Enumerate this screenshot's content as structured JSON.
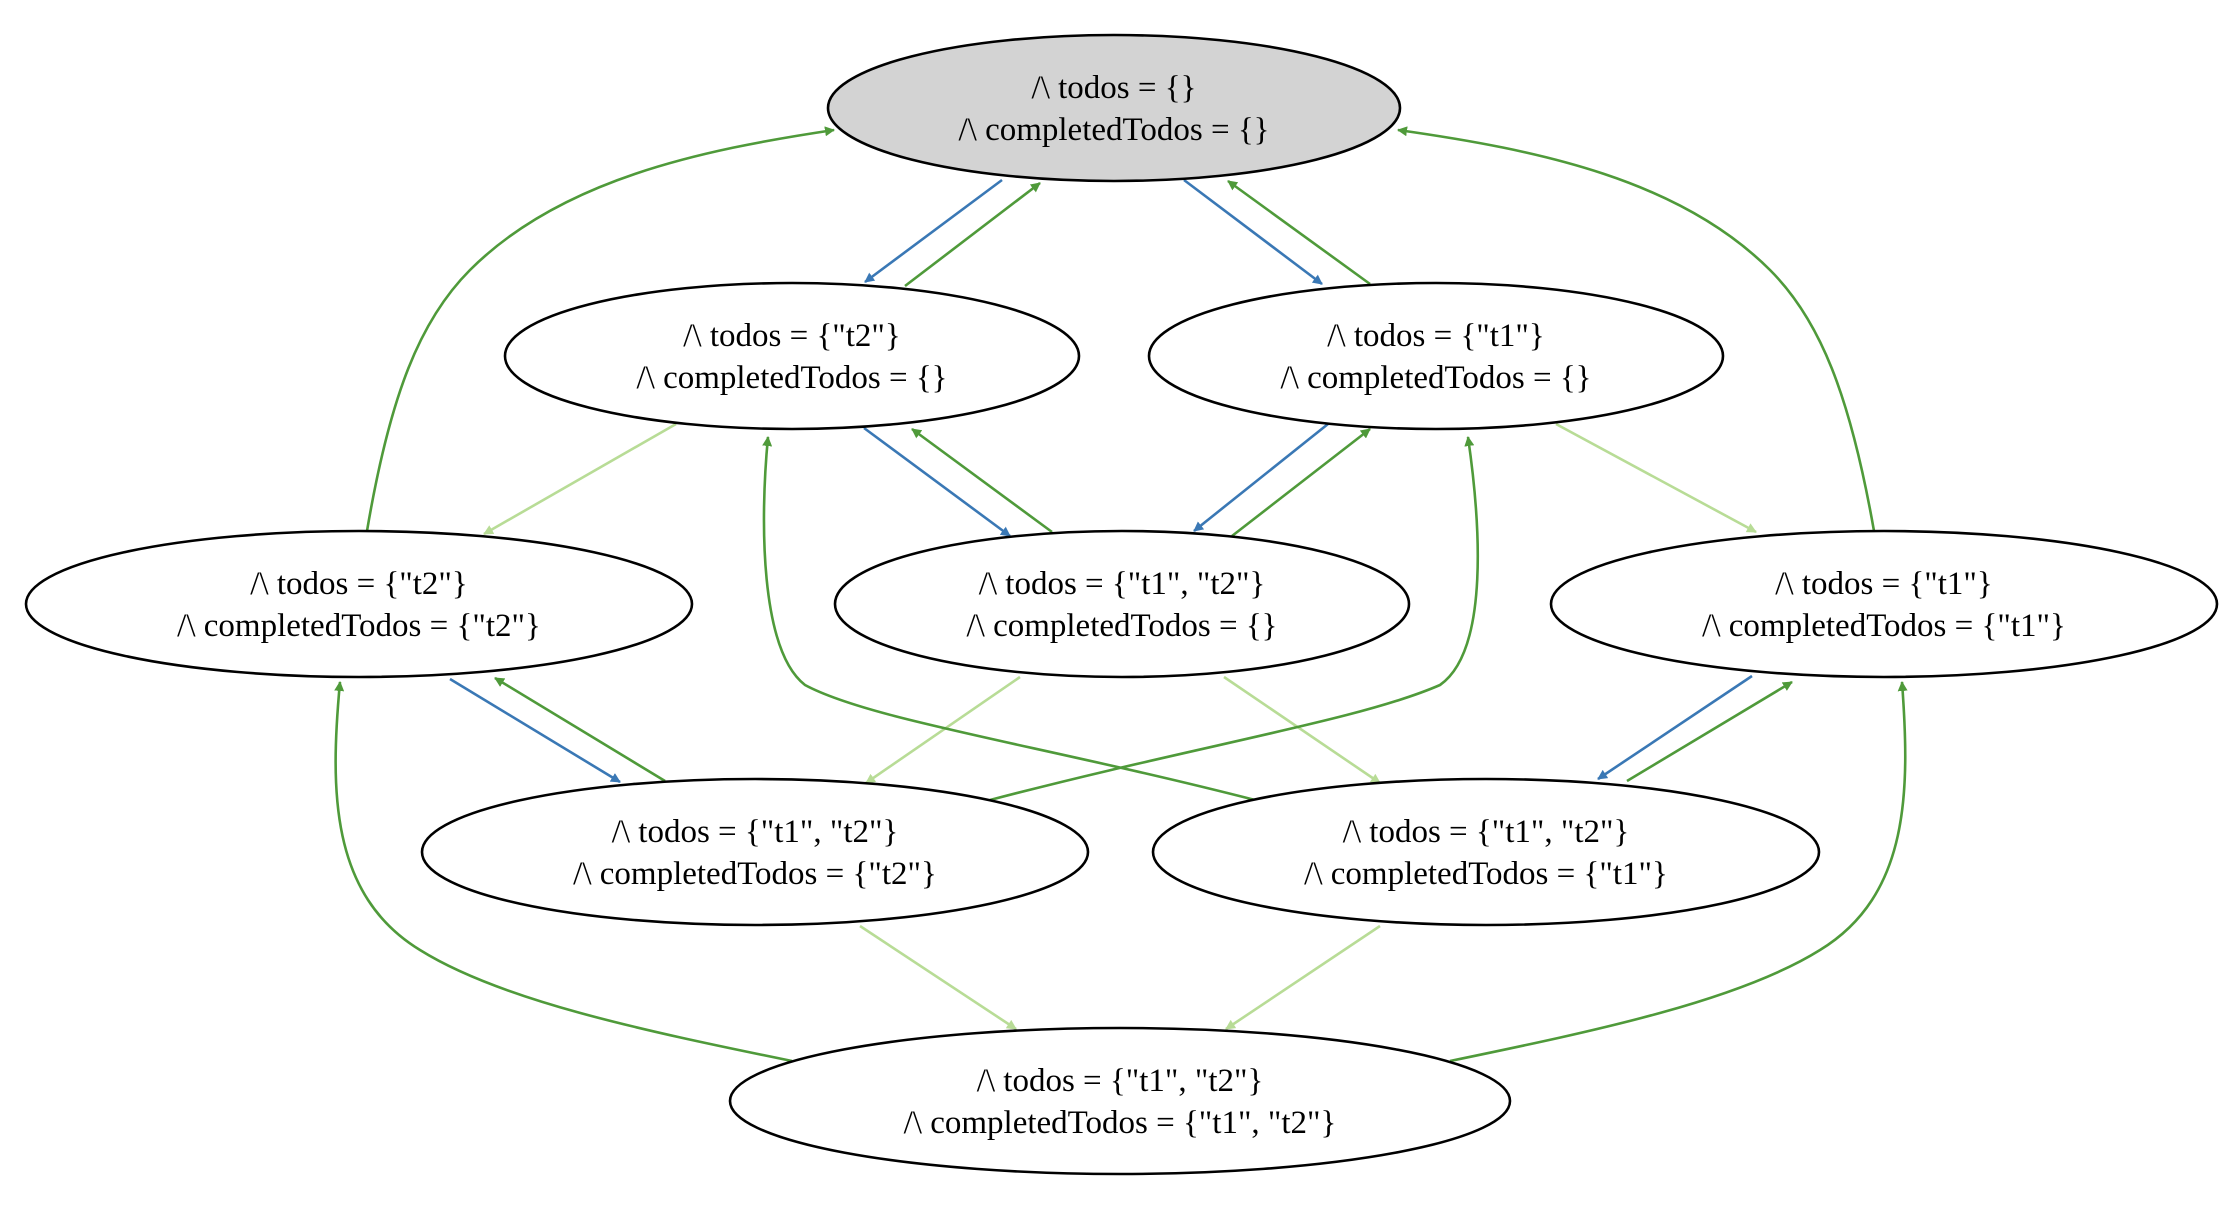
{
  "diagram": {
    "colors": {
      "initial_fill": "#d3d3d3",
      "state_fill": "#ffffff",
      "border": "#000000",
      "add_edge": "#3a78b5",
      "remove_edge": "#4f9a3a",
      "complete_edge": "#b8dc96"
    },
    "nodes": [
      {
        "id": "s0",
        "initial": true,
        "line1": "/\\ todos = {}",
        "line2": "/\\ completedTodos = {}"
      },
      {
        "id": "s_t2",
        "initial": false,
        "line1": "/\\ todos = {\"t2\"}",
        "line2": "/\\ completedTodos = {}"
      },
      {
        "id": "s_t1",
        "initial": false,
        "line1": "/\\ todos = {\"t1\"}",
        "line2": "/\\ completedTodos = {}"
      },
      {
        "id": "s_t2_c2",
        "initial": false,
        "line1": "/\\ todos = {\"t2\"}",
        "line2": "/\\ completedTodos = {\"t2\"}"
      },
      {
        "id": "s_t12",
        "initial": false,
        "line1": "/\\ todos = {\"t1\", \"t2\"}",
        "line2": "/\\ completedTodos = {}"
      },
      {
        "id": "s_t1_c1",
        "initial": false,
        "line1": "/\\ todos = {\"t1\"}",
        "line2": "/\\ completedTodos = {\"t1\"}"
      },
      {
        "id": "s_t12_c2",
        "initial": false,
        "line1": "/\\ todos = {\"t1\", \"t2\"}",
        "line2": "/\\ completedTodos = {\"t2\"}"
      },
      {
        "id": "s_t12_c1",
        "initial": false,
        "line1": "/\\ todos = {\"t1\", \"t2\"}",
        "line2": "/\\ completedTodos = {\"t1\"}"
      },
      {
        "id": "s_t12_c12",
        "initial": false,
        "line1": "/\\ todos = {\"t1\", \"t2\"}",
        "line2": "/\\ completedTodos = {\"t1\", \"t2\"}"
      }
    ],
    "edges": [
      {
        "from": "s0",
        "to": "s_t2",
        "kind": "add"
      },
      {
        "from": "s_t2",
        "to": "s0",
        "kind": "remove"
      },
      {
        "from": "s0",
        "to": "s_t1",
        "kind": "add"
      },
      {
        "from": "s_t1",
        "to": "s0",
        "kind": "remove"
      },
      {
        "from": "s_t2",
        "to": "s_t2_c2",
        "kind": "complete"
      },
      {
        "from": "s_t2",
        "to": "s_t12",
        "kind": "add"
      },
      {
        "from": "s_t12",
        "to": "s_t2",
        "kind": "remove"
      },
      {
        "from": "s_t1",
        "to": "s_t12",
        "kind": "add"
      },
      {
        "from": "s_t12",
        "to": "s_t1",
        "kind": "remove"
      },
      {
        "from": "s_t1",
        "to": "s_t1_c1",
        "kind": "complete"
      },
      {
        "from": "s_t2_c2",
        "to": "s0",
        "kind": "remove"
      },
      {
        "from": "s_t1_c1",
        "to": "s0",
        "kind": "remove"
      },
      {
        "from": "s_t2_c2",
        "to": "s_t12_c2",
        "kind": "add"
      },
      {
        "from": "s_t12_c2",
        "to": "s_t2_c2",
        "kind": "remove"
      },
      {
        "from": "s_t12",
        "to": "s_t12_c2",
        "kind": "complete"
      },
      {
        "from": "s_t12",
        "to": "s_t12_c1",
        "kind": "complete"
      },
      {
        "from": "s_t12_c2",
        "to": "s_t1",
        "kind": "remove"
      },
      {
        "from": "s_t12_c1",
        "to": "s_t2",
        "kind": "remove"
      },
      {
        "from": "s_t1_c1",
        "to": "s_t12_c1",
        "kind": "add"
      },
      {
        "from": "s_t12_c1",
        "to": "s_t1_c1",
        "kind": "remove"
      },
      {
        "from": "s_t12_c2",
        "to": "s_t12_c12",
        "kind": "complete"
      },
      {
        "from": "s_t12_c1",
        "to": "s_t12_c12",
        "kind": "complete"
      },
      {
        "from": "s_t12_c12",
        "to": "s_t2_c2",
        "kind": "remove"
      },
      {
        "from": "s_t12_c12",
        "to": "s_t1_c1",
        "kind": "remove"
      }
    ]
  }
}
